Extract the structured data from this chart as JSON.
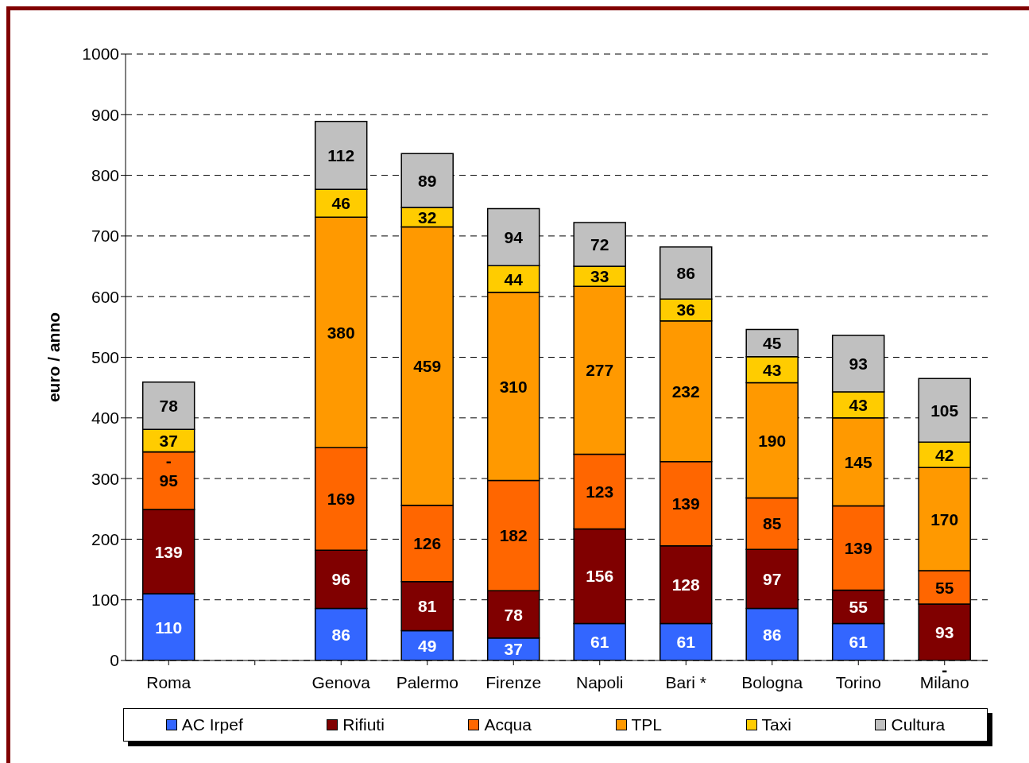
{
  "chart_data": {
    "type": "bar",
    "stacked": true,
    "ylabel": "euro / anno",
    "categories": [
      "Roma",
      null,
      "Genova",
      "Palermo",
      "Firenze",
      "Napoli",
      "Bari *",
      "Bologna",
      "Torino",
      "Milano"
    ],
    "series": [
      {
        "name": "AC Irpef",
        "color": "#3366ff",
        "values": [
          110,
          null,
          86,
          49,
          37,
          61,
          61,
          86,
          61,
          0
        ],
        "value_labels": [
          "110",
          null,
          "86",
          "49",
          "37",
          "61",
          "61",
          "86",
          "61",
          "-"
        ]
      },
      {
        "name": "Rifiuti",
        "color": "#800000",
        "values": [
          139,
          null,
          96,
          81,
          78,
          156,
          128,
          97,
          55,
          93
        ],
        "value_labels": [
          "139",
          null,
          "96",
          "81",
          "78",
          "156",
          "128",
          "97",
          "55",
          "93"
        ]
      },
      {
        "name": "Acqua",
        "color": "#ff6600",
        "values": [
          95,
          null,
          169,
          126,
          182,
          123,
          139,
          85,
          139,
          55
        ],
        "value_labels": [
          "95",
          null,
          "169",
          "126",
          "182",
          "123",
          "139",
          "85",
          "139",
          "55"
        ]
      },
      {
        "name": "TPL",
        "color": "#ff9900",
        "values": [
          0,
          null,
          380,
          459,
          310,
          277,
          232,
          190,
          145,
          170
        ],
        "value_labels": [
          "-",
          null,
          "380",
          "459",
          "310",
          "277",
          "232",
          "190",
          "145",
          "170"
        ]
      },
      {
        "name": "Taxi",
        "color": "#ffcc00",
        "values": [
          37,
          null,
          46,
          32,
          44,
          33,
          36,
          43,
          43,
          42
        ],
        "value_labels": [
          "37",
          null,
          "46",
          "32",
          "44",
          "33",
          "36",
          "43",
          "43",
          "42"
        ]
      },
      {
        "name": "Cultura",
        "color": "#c0c0c0",
        "values": [
          78,
          null,
          112,
          89,
          94,
          72,
          86,
          45,
          93,
          105
        ],
        "value_labels": [
          "78",
          null,
          "112",
          "89",
          "94",
          "72",
          "86",
          "45",
          "93",
          "105"
        ]
      }
    ],
    "ylim": [
      0,
      1000
    ],
    "yticks": [
      0,
      100,
      200,
      300,
      400,
      500,
      600,
      700,
      800,
      900,
      1000
    ],
    "grid": "y",
    "legend": "bottom"
  }
}
